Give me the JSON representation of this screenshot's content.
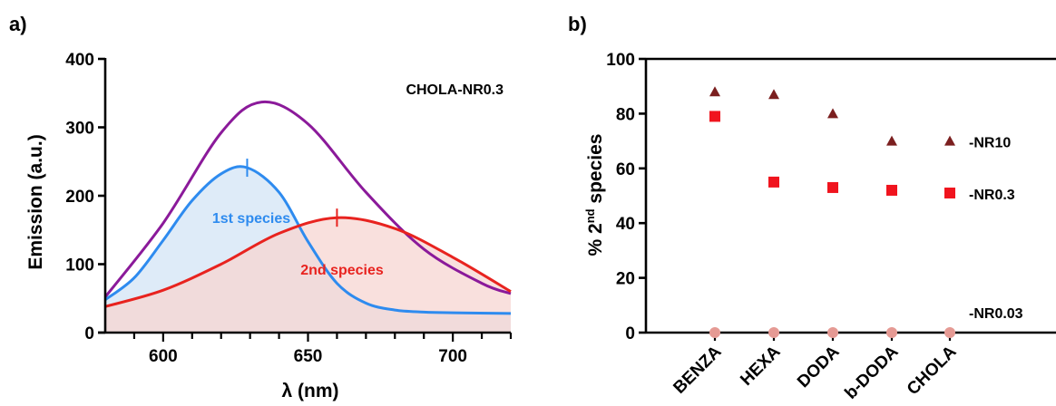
{
  "chart_data": [
    {
      "type": "area",
      "panel_label": "a)",
      "title": "",
      "annotation": "CHOLA-NR0.3",
      "xlabel": "λ (nm)",
      "ylabel": "Emission (a.u.)",
      "xlim": [
        580,
        720
      ],
      "ylim": [
        0,
        400
      ],
      "x_ticks": [
        "600",
        "650",
        "700"
      ],
      "y_ticks": [
        "0",
        "100",
        "200",
        "300",
        "400"
      ],
      "grid": false,
      "series": [
        {
          "label": "",
          "color": "#8B1A9A",
          "fill": "none",
          "x": [
            580,
            600,
            620,
            634,
            650,
            670,
            690,
            710,
            720
          ],
          "y": [
            52,
            160,
            292,
            337,
            305,
            205,
            122,
            72,
            57
          ]
        },
        {
          "label": "1st species",
          "color": "#2E8BEF",
          "fill": "#DCEAF8",
          "peak_x": 629,
          "peak_y": 241,
          "x": [
            580,
            590,
            600,
            610,
            620,
            629,
            640,
            650,
            660,
            670,
            680,
            690,
            700,
            720
          ],
          "y": [
            48,
            80,
            135,
            193,
            232,
            241,
            205,
            133,
            72,
            43,
            33,
            30,
            29,
            28
          ]
        },
        {
          "label": "2nd species",
          "color": "#E8231F",
          "fill": "#F7D5D2",
          "peak_x": 660,
          "peak_y": 168,
          "x": [
            580,
            600,
            620,
            640,
            660,
            680,
            700,
            720
          ],
          "y": [
            38,
            62,
            100,
            145,
            168,
            152,
            110,
            60
          ]
        }
      ]
    },
    {
      "type": "scatter",
      "panel_label": "b)",
      "title": "",
      "xlabel": "",
      "ylabel": "% 2nd species",
      "ylabel_parts": [
        "% 2",
        "nd",
        " species"
      ],
      "ylim": [
        0,
        100
      ],
      "y_ticks": [
        "0",
        "20",
        "40",
        "60",
        "80",
        "100"
      ],
      "categories": [
        "BENZA",
        "HEXA",
        "DODA",
        "b-DODA",
        "CHOLA"
      ],
      "grid": false,
      "series": [
        {
          "name": "-NR10",
          "marker": "triangle",
          "color": "#7B1F1F",
          "values": [
            88,
            87,
            80,
            70,
            70
          ]
        },
        {
          "name": "-NR0.3",
          "marker": "square",
          "color": "#F0141E",
          "values": [
            79,
            55,
            53,
            52,
            51
          ]
        },
        {
          "name": "-NR0.03",
          "marker": "circle",
          "color": "#E59A94",
          "values": [
            0,
            0,
            0,
            0,
            0
          ]
        }
      ]
    }
  ]
}
